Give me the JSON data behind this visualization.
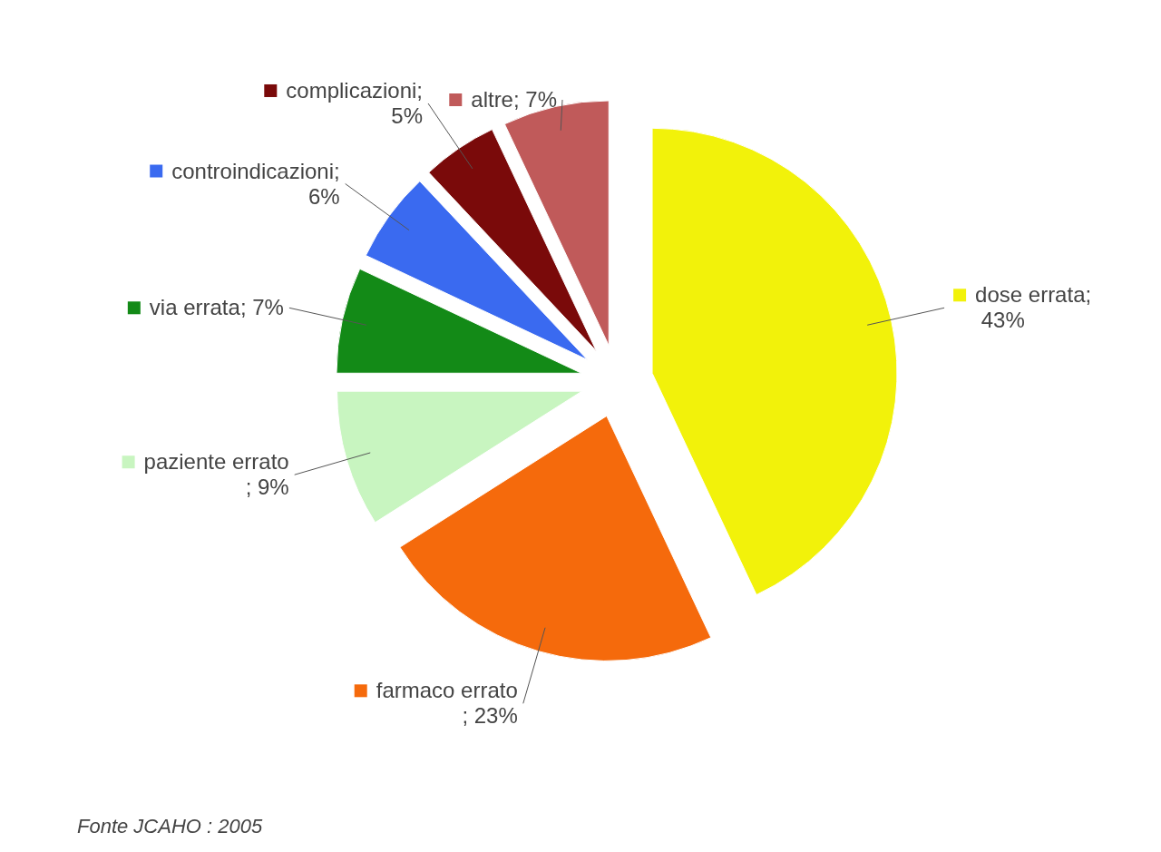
{
  "chart_data": {
    "type": "pie",
    "categories": [
      "dose errata",
      "farmaco errato",
      "paziente errato",
      "via errata",
      "controindicazioni",
      "complicazioni",
      "altre"
    ],
    "values": [
      43,
      23,
      9,
      7,
      6,
      5,
      7
    ],
    "value_labels": [
      "; 43%",
      " ; 23%",
      " ; 9%",
      "; 7%",
      "; 6%",
      "; 5%",
      "; 7%"
    ],
    "colors": [
      "#f2f20a",
      "#f56a0c",
      "#c8f5c0",
      "#138a17",
      "#3a6af0",
      "#7a0a0a",
      "#c05a5a"
    ],
    "legend": "left",
    "annotations": [
      "Fonte JCAHO : 2005"
    ]
  }
}
